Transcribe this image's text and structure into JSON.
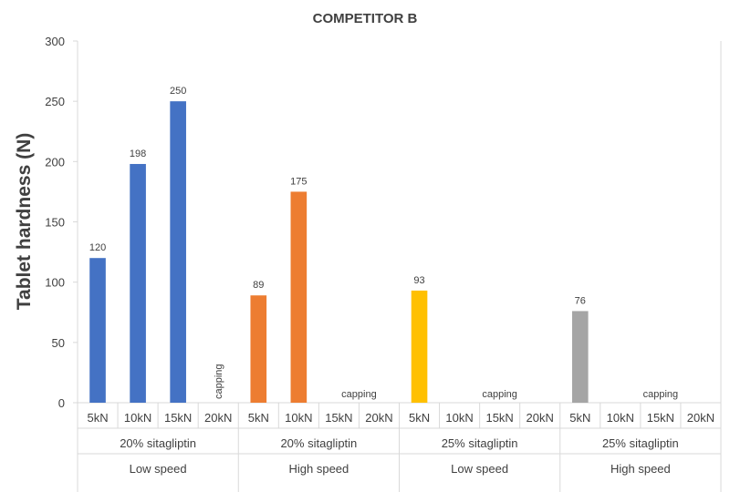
{
  "chart_data": {
    "type": "bar",
    "title": "COMPETITOR B",
    "ylabel": "Tablet hardness (N)",
    "xlabel": "",
    "ylim": [
      0,
      300
    ],
    "yticks": [
      0,
      50,
      100,
      150,
      200,
      250,
      300
    ],
    "grid": false,
    "groups": [
      {
        "formulation": "20% sitagliptin",
        "speed": "Low speed",
        "color": "#4472C4",
        "categories": [
          "5kN",
          "10kN",
          "15kN",
          "20kN"
        ],
        "values": [
          120,
          198,
          250,
          null
        ],
        "note": "capping",
        "note_at": 3,
        "note_vertical": true
      },
      {
        "formulation": "20% sitagliptin",
        "speed": "High speed",
        "color": "#ED7D31",
        "categories": [
          "5kN",
          "10kN",
          "15kN",
          "20kN"
        ],
        "values": [
          89,
          175,
          null,
          null
        ],
        "note": "capping",
        "note_at": 2.5,
        "note_vertical": false
      },
      {
        "formulation": "25% sitagliptin",
        "speed": "Low speed",
        "color": "#FFC000",
        "categories": [
          "5kN",
          "10kN",
          "15kN",
          "20kN"
        ],
        "values": [
          93,
          null,
          null,
          null
        ],
        "note": "capping",
        "note_at": 2,
        "note_vertical": false
      },
      {
        "formulation": "25% sitagliptin",
        "speed": "High speed",
        "color": "#A5A5A5",
        "categories": [
          "5kN",
          "10kN",
          "15kN",
          "20kN"
        ],
        "values": [
          76,
          null,
          null,
          null
        ],
        "note": "capping",
        "note_at": 2,
        "note_vertical": false
      }
    ]
  }
}
